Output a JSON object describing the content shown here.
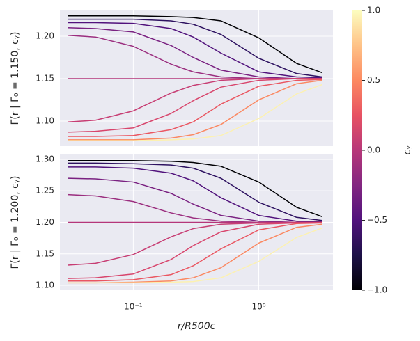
{
  "chart_data": [
    {
      "type": "line",
      "ylabel": "Γ(r | Γ₀ = 1.150, cᵧ)",
      "log_x": true,
      "grid": true,
      "x": [
        0.03,
        0.05,
        0.1,
        0.2,
        0.3,
        0.5,
        1,
        2,
        3.2
      ],
      "xlim": [
        0.026,
        3.9
      ],
      "xticks": [
        0.1,
        1
      ],
      "ylim": [
        1.0705,
        1.2303
      ],
      "yticks": [
        {
          "value": 1.1,
          "label": "1.10"
        },
        1.15,
        {
          "value": 1.2,
          "label": "1.20"
        }
      ],
      "series": [
        {
          "color": "#000004",
          "values": [
            1.224,
            1.224,
            1.224,
            1.223,
            1.222,
            1.218,
            1.198,
            1.168,
            1.157
          ]
        },
        {
          "color": "#2d1160",
          "values": [
            1.22,
            1.22,
            1.22,
            1.218,
            1.214,
            1.202,
            1.174,
            1.156,
            1.152
          ]
        },
        {
          "color": "#51127c",
          "values": [
            1.216,
            1.216,
            1.215,
            1.209,
            1.199,
            1.18,
            1.158,
            1.152,
            1.151
          ]
        },
        {
          "color": "#7a2181",
          "values": [
            1.21,
            1.209,
            1.205,
            1.189,
            1.175,
            1.16,
            1.152,
            1.15,
            1.15
          ]
        },
        {
          "color": "#9b2e7f",
          "values": [
            1.201,
            1.199,
            1.188,
            1.167,
            1.158,
            1.152,
            1.15,
            1.15,
            1.15
          ]
        },
        {
          "color": "#b5367a",
          "values": [
            1.15,
            1.15,
            1.15,
            1.15,
            1.15,
            1.15,
            1.15,
            1.15,
            1.15
          ]
        },
        {
          "color": "#c73d73",
          "values": [
            1.099,
            1.101,
            1.112,
            1.133,
            1.142,
            1.148,
            1.15,
            1.15,
            1.15
          ]
        },
        {
          "color": "#d8456c",
          "values": [
            1.087,
            1.088,
            1.092,
            1.109,
            1.124,
            1.14,
            1.148,
            1.15,
            1.15
          ]
        },
        {
          "color": "#ea5661",
          "values": [
            1.082,
            1.082,
            1.083,
            1.09,
            1.099,
            1.12,
            1.141,
            1.148,
            1.149
          ]
        },
        {
          "color": "#fb8861",
          "values": [
            1.078,
            1.078,
            1.078,
            1.08,
            1.084,
            1.096,
            1.125,
            1.144,
            1.148
          ]
        },
        {
          "color": "#fcf1b1",
          "values": [
            1.077,
            1.077,
            1.077,
            1.078,
            1.079,
            1.083,
            1.103,
            1.132,
            1.143
          ]
        }
      ]
    },
    {
      "type": "line",
      "ylabel": "Γ(r | Γ₀ = 1.200, cᵧ)",
      "xlabel": "r/R500c",
      "log_x": true,
      "grid": true,
      "x": [
        0.03,
        0.05,
        0.1,
        0.2,
        0.3,
        0.5,
        1,
        2,
        3.2
      ],
      "xlim": [
        0.026,
        3.9
      ],
      "xticks": [
        {
          "value": 0.1,
          "label": "10⁻¹"
        },
        {
          "value": 1,
          "label": "10⁰"
        }
      ],
      "ylim": [
        1.0923,
        1.3077
      ],
      "yticks": [
        {
          "value": 1.1,
          "label": "1.10"
        },
        1.15,
        {
          "value": 1.2,
          "label": "1.20"
        },
        1.25,
        {
          "value": 1.3,
          "label": "1.30"
        }
      ],
      "series": [
        {
          "color": "#000004",
          "values": [
            1.298,
            1.298,
            1.298,
            1.297,
            1.295,
            1.289,
            1.264,
            1.224,
            1.209
          ]
        },
        {
          "color": "#2d1160",
          "values": [
            1.294,
            1.294,
            1.293,
            1.291,
            1.286,
            1.27,
            1.232,
            1.208,
            1.203
          ]
        },
        {
          "color": "#51127c",
          "values": [
            1.288,
            1.288,
            1.286,
            1.278,
            1.266,
            1.239,
            1.211,
            1.202,
            1.201
          ]
        },
        {
          "color": "#7a2181",
          "values": [
            1.27,
            1.269,
            1.264,
            1.246,
            1.229,
            1.211,
            1.202,
            1.2,
            1.2
          ]
        },
        {
          "color": "#9b2e7f",
          "values": [
            1.244,
            1.242,
            1.233,
            1.215,
            1.207,
            1.202,
            1.2,
            1.2,
            1.2
          ]
        },
        {
          "color": "#b5367a",
          "values": [
            1.2,
            1.2,
            1.2,
            1.2,
            1.2,
            1.2,
            1.2,
            1.2,
            1.2
          ]
        },
        {
          "color": "#c73d73",
          "values": [
            1.132,
            1.135,
            1.149,
            1.177,
            1.19,
            1.197,
            1.199,
            1.2,
            1.2
          ]
        },
        {
          "color": "#d8456c",
          "values": [
            1.111,
            1.112,
            1.118,
            1.141,
            1.163,
            1.185,
            1.197,
            1.199,
            1.2
          ]
        },
        {
          "color": "#ea5661",
          "values": [
            1.107,
            1.107,
            1.109,
            1.117,
            1.131,
            1.158,
            1.188,
            1.198,
            1.199
          ]
        },
        {
          "color": "#fb8861",
          "values": [
            1.104,
            1.104,
            1.105,
            1.107,
            1.112,
            1.128,
            1.167,
            1.192,
            1.197
          ]
        },
        {
          "color": "#fcf1b1",
          "values": [
            1.104,
            1.104,
            1.104,
            1.105,
            1.106,
            1.112,
            1.138,
            1.176,
            1.191
          ]
        }
      ]
    }
  ],
  "colorbar": {
    "label": "cᵧ",
    "lim": [
      -1,
      1
    ],
    "ticks": [
      {
        "value": -1,
        "label": "−1.0"
      },
      {
        "value": -0.5,
        "label": "−0.5"
      },
      {
        "value": 0,
        "label": "0.0"
      },
      0.5,
      {
        "value": 1,
        "label": "1.0"
      }
    ],
    "colors": [
      "#000004",
      "#1d1147",
      "#51127c",
      "#822681",
      "#b73779",
      "#e75263",
      "#fc8961",
      "#fec287",
      "#fcfdbf"
    ]
  }
}
